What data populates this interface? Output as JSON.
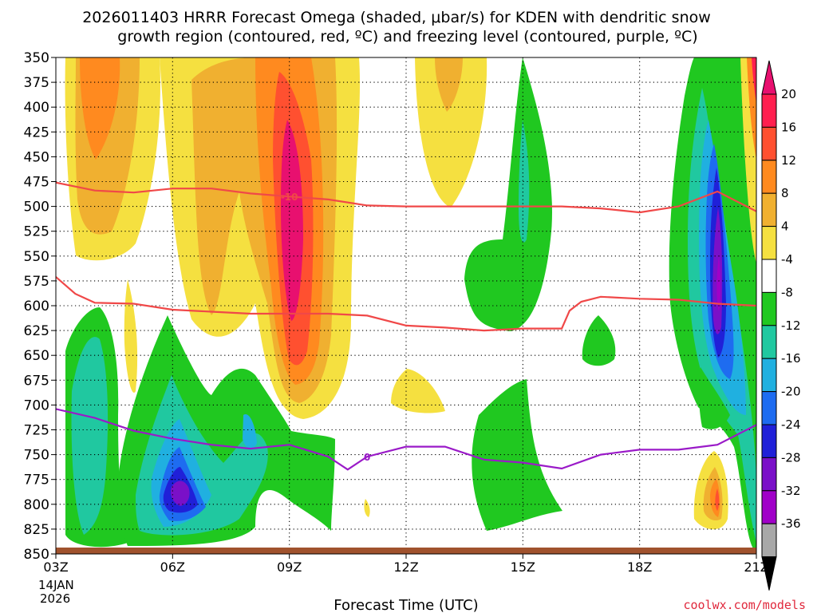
{
  "chart_data": {
    "type": "heatmap",
    "title_line1": "2026011403 HRRR Forecast Omega (shaded, μbar/s) for KDEN with dendritic snow",
    "title_line2": "growth region (contoured, red, ºC) and freezing level (contoured, purple, ºC)",
    "xlabel": "Forecast Time (UTC)",
    "ylabel": "",
    "x_ticks": [
      "03Z",
      "06Z",
      "09Z",
      "12Z",
      "15Z",
      "18Z",
      "21Z"
    ],
    "x_hours": [
      3,
      6,
      9,
      12,
      15,
      18,
      21
    ],
    "date_line1": "14JAN",
    "date_line2": "2026",
    "y_ticks": [
      "350",
      "375",
      "400",
      "425",
      "450",
      "475",
      "500",
      "525",
      "550",
      "575",
      "600",
      "625",
      "650",
      "675",
      "700",
      "725",
      "750",
      "775",
      "800",
      "825",
      "850"
    ],
    "y_values": [
      350,
      375,
      400,
      425,
      450,
      475,
      500,
      525,
      550,
      575,
      600,
      625,
      650,
      675,
      700,
      725,
      750,
      775,
      800,
      825,
      850
    ],
    "xlim": [
      3,
      21
    ],
    "ylim": [
      350,
      850
    ],
    "grid": true,
    "colorbar": {
      "labels": [
        "20",
        "16",
        "12",
        "8",
        "4",
        "-4",
        "-8",
        "-12",
        "-16",
        "-20",
        "-24",
        "-28",
        "-32",
        "-36"
      ],
      "colors": [
        "#ff1f4f",
        "#ff5030",
        "#ff8a1f",
        "#f0b030",
        "#f5e040",
        "#ffffff",
        "#20c820",
        "#20c8a0",
        "#20b0e0",
        "#1e6cf0",
        "#2020d8",
        "#7a10c8",
        "#a000c8",
        "#a8a8a8"
      ],
      "top_arrow_color": "#e8106f",
      "bottom_arrow_color": "#000000"
    },
    "contours": {
      "red_minus10": {
        "label": "-10",
        "color": "#f04848",
        "x": [
          3,
          4,
          5,
          6,
          7,
          8,
          9,
          10,
          11,
          12,
          13,
          14,
          15,
          16,
          17,
          18,
          19,
          20,
          21
        ],
        "y": [
          476,
          484,
          486,
          482,
          482,
          487,
          490,
          493,
          499,
          500,
          500,
          500,
          500,
          500,
          502,
          506,
          500,
          485,
          505
        ]
      },
      "red_minus18": {
        "label": "",
        "color": "#f04848",
        "x": [
          3,
          3.5,
          4,
          5,
          6,
          7,
          8,
          9,
          10,
          11,
          12,
          13,
          14,
          15,
          16,
          16.2,
          16.5,
          17,
          18,
          19,
          20,
          21
        ],
        "y": [
          571,
          588,
          597,
          598,
          604,
          606,
          608,
          608,
          608,
          610,
          620,
          622,
          625,
          623,
          623,
          605,
          596,
          591,
          593,
          594,
          598,
          600
        ]
      },
      "purple_0": {
        "label": "0",
        "color": "#9a1ac8",
        "x": [
          3,
          4,
          5,
          6,
          7,
          8,
          9,
          10,
          10.5,
          11,
          12,
          13,
          14,
          15,
          16,
          17,
          18,
          19,
          20,
          21
        ],
        "y": [
          704,
          713,
          726,
          734,
          740,
          744,
          740,
          752,
          765,
          752,
          742,
          742,
          755,
          758,
          764,
          750,
          745,
          745,
          740,
          720
        ]
      }
    },
    "omega_regions": [
      {
        "name": "ascent-cold-upper",
        "value": -8,
        "t_start": 14.1,
        "t_end": 15.7,
        "p_top": 350,
        "p_bottom": 580
      },
      {
        "name": "ascent-late-column",
        "value": -28,
        "t_start": 19.2,
        "t_end": 21.0,
        "p_top": 350,
        "p_bottom": 820
      },
      {
        "name": "descent-09z-max",
        "value": 20,
        "t_start": 8.6,
        "t_end": 9.4,
        "p_top": 400,
        "p_bottom": 560
      },
      {
        "name": "ascent-06z-lower",
        "value": -24,
        "t_start": 5.6,
        "t_end": 6.4,
        "p_top": 740,
        "p_bottom": 800
      }
    ],
    "ground_color": "#a0522d",
    "ground_p": 845
  },
  "footer": {
    "credit": "coolwx.com/models"
  }
}
